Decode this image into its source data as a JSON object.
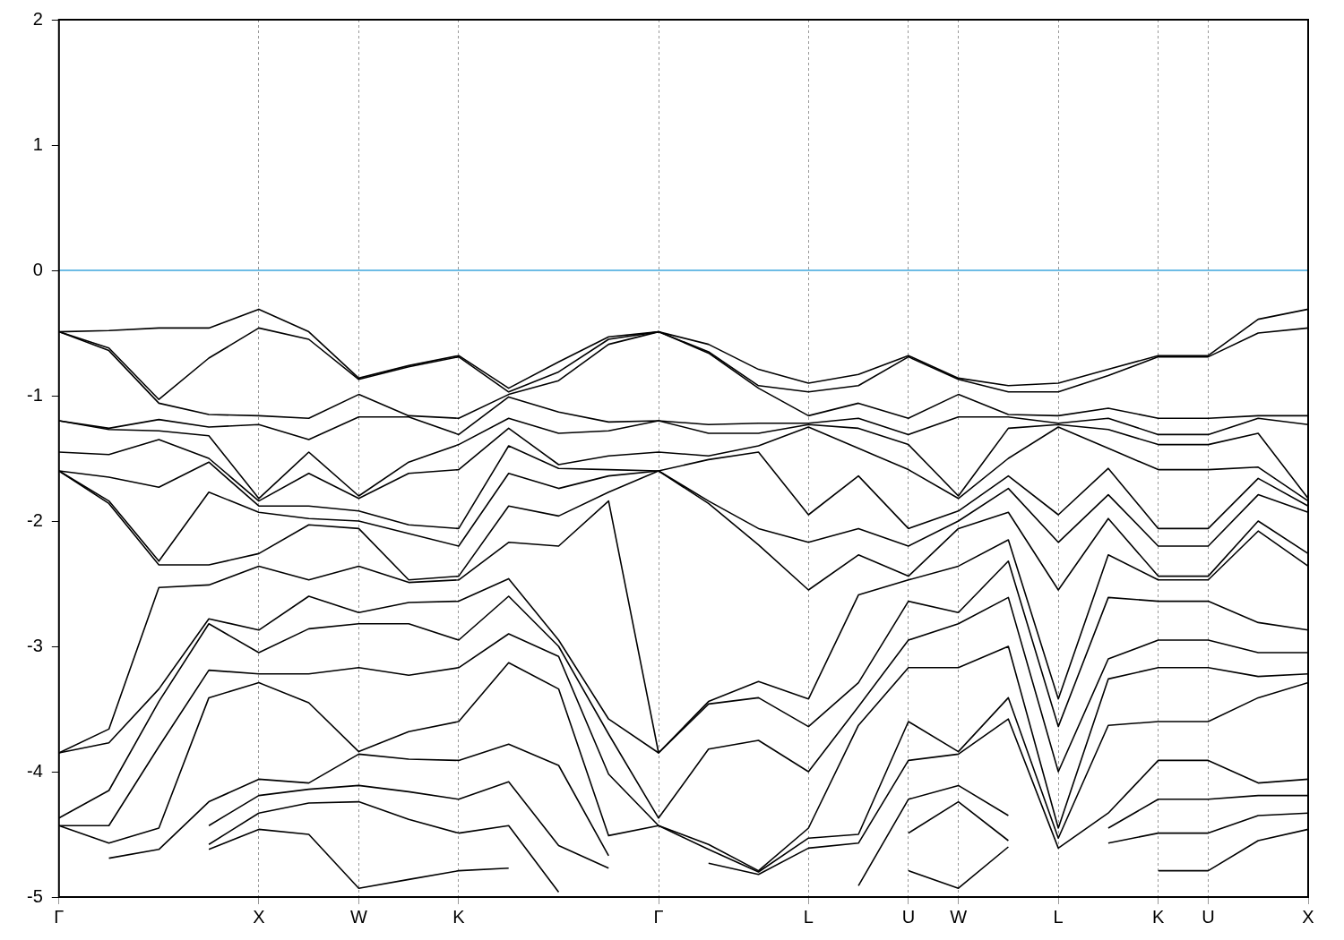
{
  "chart_data": {
    "type": "line",
    "categories": [
      "Γ",
      null,
      null,
      null,
      "X",
      null,
      "W",
      null,
      "K",
      null,
      null,
      null,
      "Γ",
      null,
      null,
      "L",
      null,
      "U",
      "W",
      null,
      "L",
      null,
      "K",
      "U",
      null,
      "X"
    ],
    "ylim": [
      -5,
      2
    ],
    "yticks": [
      -5,
      -4,
      -3,
      -2,
      -1,
      0,
      1,
      2
    ],
    "grid": "x",
    "ref_lines": [
      {
        "axis": "y",
        "value": 0,
        "color": "#3ea6dc"
      }
    ],
    "series": [
      {
        "color": "#000000",
        "values": [
          -0.49,
          -0.48,
          -0.46,
          -0.46,
          -0.31,
          -0.49,
          -0.86,
          -0.76,
          -0.68,
          -0.94,
          -0.73,
          -0.53,
          -0.49,
          -0.59,
          -0.79,
          -0.9,
          -0.83,
          -0.68,
          -0.86,
          -0.92,
          -0.9,
          -0.79,
          -0.68,
          -0.68,
          -0.39,
          -0.31
        ]
      },
      {
        "color": "#000000",
        "values": [
          -0.49,
          -0.62,
          -1.03,
          -0.7,
          -0.46,
          -0.55,
          -0.87,
          -0.77,
          -0.69,
          -0.97,
          -0.81,
          -0.55,
          -0.49,
          -0.65,
          -0.92,
          -0.97,
          -0.92,
          -0.69,
          -0.87,
          -0.97,
          -0.97,
          -0.84,
          -0.69,
          -0.69,
          -0.5,
          -0.46
        ]
      },
      {
        "color": "#000000",
        "values": [
          -0.49,
          -0.64,
          -1.06,
          -1.15,
          -1.16,
          -1.18,
          -0.99,
          -1.16,
          -1.18,
          -0.99,
          -0.88,
          -0.59,
          -0.49,
          -0.66,
          -0.94,
          -1.16,
          -1.06,
          -1.18,
          -0.99,
          -1.15,
          -1.16,
          -1.1,
          -1.18,
          -1.18,
          -1.16,
          -1.16
        ]
      },
      {
        "color": "#000000",
        "values": [
          -1.2,
          -1.26,
          -1.19,
          -1.25,
          -1.23,
          -1.35,
          -1.17,
          -1.17,
          -1.31,
          -1.01,
          -1.13,
          -1.21,
          -1.2,
          -1.23,
          -1.22,
          -1.22,
          -1.18,
          -1.31,
          -1.17,
          -1.17,
          -1.22,
          -1.18,
          -1.31,
          -1.31,
          -1.18,
          -1.23
        ]
      },
      {
        "color": "#000000",
        "values": [
          -1.2,
          -1.27,
          -1.28,
          -1.32,
          -1.82,
          -1.45,
          -1.8,
          -1.53,
          -1.39,
          -1.18,
          -1.3,
          -1.28,
          -1.2,
          -1.3,
          -1.3,
          -1.23,
          -1.26,
          -1.39,
          -1.8,
          -1.26,
          -1.23,
          -1.27,
          -1.39,
          -1.39,
          -1.3,
          -1.82
        ]
      },
      {
        "color": "#000000",
        "values": [
          -1.45,
          -1.47,
          -1.35,
          -1.5,
          -1.84,
          -1.62,
          -1.82,
          -1.62,
          -1.59,
          -1.26,
          -1.55,
          -1.48,
          -1.45,
          -1.48,
          -1.4,
          -1.25,
          -1.42,
          -1.59,
          -1.82,
          -1.5,
          -1.25,
          -1.42,
          -1.59,
          -1.59,
          -1.57,
          -1.84
        ]
      },
      {
        "color": "#000000",
        "values": [
          -1.6,
          -1.65,
          -1.73,
          -1.53,
          -1.88,
          -1.88,
          -1.92,
          -2.03,
          -2.06,
          -1.4,
          -1.58,
          -1.59,
          -1.6,
          -1.51,
          -1.45,
          -1.95,
          -1.64,
          -2.06,
          -1.92,
          -1.64,
          -1.95,
          -1.58,
          -2.06,
          -2.06,
          -1.66,
          -1.88
        ]
      },
      {
        "color": "#000000",
        "values": [
          -1.6,
          -1.84,
          -2.32,
          -1.77,
          -1.93,
          -1.98,
          -2,
          -2.1,
          -2.2,
          -1.62,
          -1.74,
          -1.64,
          -1.6,
          -1.84,
          -2.06,
          -2.17,
          -2.06,
          -2.2,
          -2,
          -1.74,
          -2.17,
          -1.79,
          -2.2,
          -2.2,
          -1.79,
          -1.93
        ]
      },
      {
        "color": "#000000",
        "values": [
          -1.6,
          -1.86,
          -2.35,
          -2.35,
          -2.26,
          -2.03,
          -2.06,
          -2.47,
          -2.44,
          -1.88,
          -1.96,
          -1.77,
          -1.6,
          -1.86,
          -2.19,
          -2.55,
          -2.27,
          -2.44,
          -2.06,
          -1.93,
          -2.55,
          -1.98,
          -2.44,
          -2.44,
          -2,
          -2.26
        ]
      },
      {
        "color": "#000000",
        "values": [
          -3.85,
          -3.66,
          -2.53,
          -2.51,
          -2.36,
          -2.47,
          -2.36,
          -2.49,
          -2.47,
          -2.17,
          -2.2,
          -1.84,
          -3.85,
          -3.44,
          -3.28,
          -3.42,
          -2.59,
          -2.47,
          -2.36,
          -2.15,
          -3.42,
          -2.27,
          -2.47,
          -2.47,
          -2.08,
          -2.36
        ]
      },
      {
        "color": "#000000",
        "values": [
          -3.85,
          -3.77,
          -3.34,
          -2.78,
          -2.87,
          -2.6,
          -2.73,
          -2.65,
          -2.64,
          -2.46,
          -2.95,
          -3.58,
          -3.85,
          -3.46,
          -3.41,
          -3.64,
          -3.29,
          -2.64,
          -2.73,
          -2.32,
          -3.64,
          -2.61,
          -2.64,
          -2.64,
          -2.81,
          -2.87
        ]
      },
      {
        "color": "#000000",
        "values": [
          -4.37,
          -4.15,
          -3.44,
          -2.82,
          -3.05,
          -2.86,
          -2.82,
          -2.82,
          -2.95,
          -2.6,
          -3,
          -3.7,
          -4.37,
          -3.82,
          -3.75,
          -4,
          -3.48,
          -2.95,
          -2.82,
          -2.61,
          -4,
          -3.1,
          -2.95,
          -2.95,
          -3.05,
          -3.05
        ]
      },
      {
        "color": "#000000",
        "values": [
          -4.43,
          -4.43,
          -3.8,
          -3.19,
          -3.22,
          -3.22,
          -3.17,
          -3.23,
          -3.17,
          -2.9,
          -3.08,
          -4.02,
          -4.43,
          -4.58,
          -4.79,
          -4.45,
          -3.63,
          -3.17,
          -3.17,
          -3,
          -4.45,
          -3.26,
          -3.17,
          -3.17,
          -3.24,
          -3.22
        ]
      },
      {
        "color": "#000000",
        "values": [
          -4.43,
          -4.57,
          -4.45,
          -3.41,
          -3.29,
          -3.45,
          -3.84,
          -3.68,
          -3.6,
          -3.13,
          -3.34,
          -4.51,
          -4.43,
          -4.62,
          -4.8,
          -4.53,
          -4.5,
          -3.6,
          -3.84,
          -3.41,
          -4.53,
          -3.63,
          -3.6,
          -3.6,
          -3.41,
          -3.29
        ]
      },
      {
        "color": "#000000",
        "values": [
          null,
          -4.69,
          -4.62,
          -4.24,
          -4.06,
          -4.09,
          -3.86,
          -3.9,
          -3.91,
          -3.78,
          -3.95,
          -4.67,
          null,
          -4.73,
          -4.82,
          -4.61,
          -4.57,
          -3.91,
          -3.86,
          -3.58,
          -4.61,
          -4.33,
          -3.91,
          -3.91,
          -4.09,
          -4.06
        ]
      },
      {
        "color": "#000000",
        "values": [
          null,
          null,
          null,
          -4.43,
          -4.19,
          -4.14,
          -4.11,
          -4.16,
          -4.22,
          -4.08,
          -4.59,
          -4.77,
          null,
          null,
          null,
          null,
          -4.91,
          -4.22,
          -4.11,
          -4.35,
          null,
          -4.45,
          -4.22,
          -4.22,
          -4.19,
          -4.19
        ]
      },
      {
        "color": "#000000",
        "values": [
          null,
          null,
          null,
          -4.58,
          -4.33,
          -4.25,
          -4.24,
          -4.38,
          -4.49,
          -4.43,
          -4.96,
          null,
          null,
          null,
          null,
          null,
          null,
          -4.49,
          -4.24,
          -4.55,
          null,
          -4.57,
          -4.49,
          -4.49,
          -4.35,
          -4.33
        ]
      },
      {
        "color": "#000000",
        "values": [
          null,
          null,
          null,
          -4.62,
          -4.46,
          -4.5,
          -4.93,
          -4.86,
          -4.79,
          -4.77,
          null,
          null,
          null,
          null,
          null,
          null,
          null,
          -4.79,
          -4.93,
          -4.6,
          null,
          null,
          -4.79,
          -4.79,
          -4.55,
          -4.46
        ]
      }
    ]
  }
}
